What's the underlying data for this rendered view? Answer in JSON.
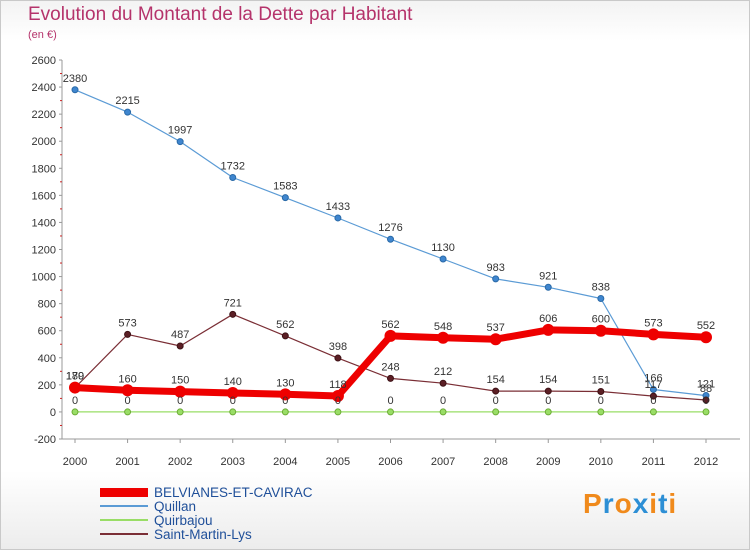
{
  "chart_data": {
    "type": "line",
    "title": "Evolution du Montant de la Dette par Habitant",
    "subtitle": "(en €)",
    "x": [
      "2000",
      "2001",
      "2002",
      "2003",
      "2004",
      "2005",
      "2006",
      "2007",
      "2008",
      "2009",
      "2010",
      "2011",
      "2012"
    ],
    "ylim": [
      -200,
      2600
    ],
    "yticks": [
      -200,
      0,
      200,
      400,
      600,
      800,
      1000,
      1200,
      1400,
      1600,
      1800,
      2000,
      2200,
      2400,
      2600
    ],
    "grid": false,
    "legend_position": "bottom-left",
    "series": [
      {
        "name": "BELVIANES-ET-CAVIRAC",
        "color": "#ee0000",
        "values": [
          180,
          160,
          150,
          140,
          130,
          118,
          562,
          548,
          537,
          606,
          600,
          573,
          552
        ]
      },
      {
        "name": "Quillan",
        "color": "#5b9bd5",
        "values": [
          2380,
          2215,
          1997,
          1732,
          1583,
          1433,
          1276,
          1130,
          983,
          921,
          838,
          166,
          121
        ]
      },
      {
        "name": "Quirbajou",
        "color": "#99dd66",
        "values": [
          0,
          0,
          0,
          0,
          0,
          0,
          0,
          0,
          0,
          0,
          0,
          0,
          0
        ]
      },
      {
        "name": "Saint-Martin-Lys",
        "color": "#7a2e35",
        "values": [
          179,
          573,
          487,
          721,
          562,
          398,
          248,
          212,
          154,
          154,
          151,
          117,
          88
        ]
      }
    ],
    "data_labels": [
      [
        "180",
        "160",
        "150",
        "140",
        "130",
        "118",
        "562",
        "548",
        "537",
        "606",
        "600",
        "573",
        "552"
      ],
      [
        "2380",
        "2215",
        "1997",
        "1732",
        "1583",
        "1433",
        "1276",
        "1130",
        "983",
        "921",
        "838",
        "166",
        "121"
      ],
      [
        "0",
        "0",
        "0",
        "0",
        "0",
        "0",
        "0",
        "0",
        "0",
        "0",
        "0",
        "0",
        "0"
      ],
      [
        "179",
        "573",
        "487",
        "721",
        "562",
        "398",
        "248",
        "212",
        "154",
        "154",
        "151",
        "117",
        "88"
      ]
    ]
  },
  "logo": {
    "letters": [
      "P",
      "r",
      "o",
      "x",
      "i",
      "t",
      "i"
    ]
  }
}
